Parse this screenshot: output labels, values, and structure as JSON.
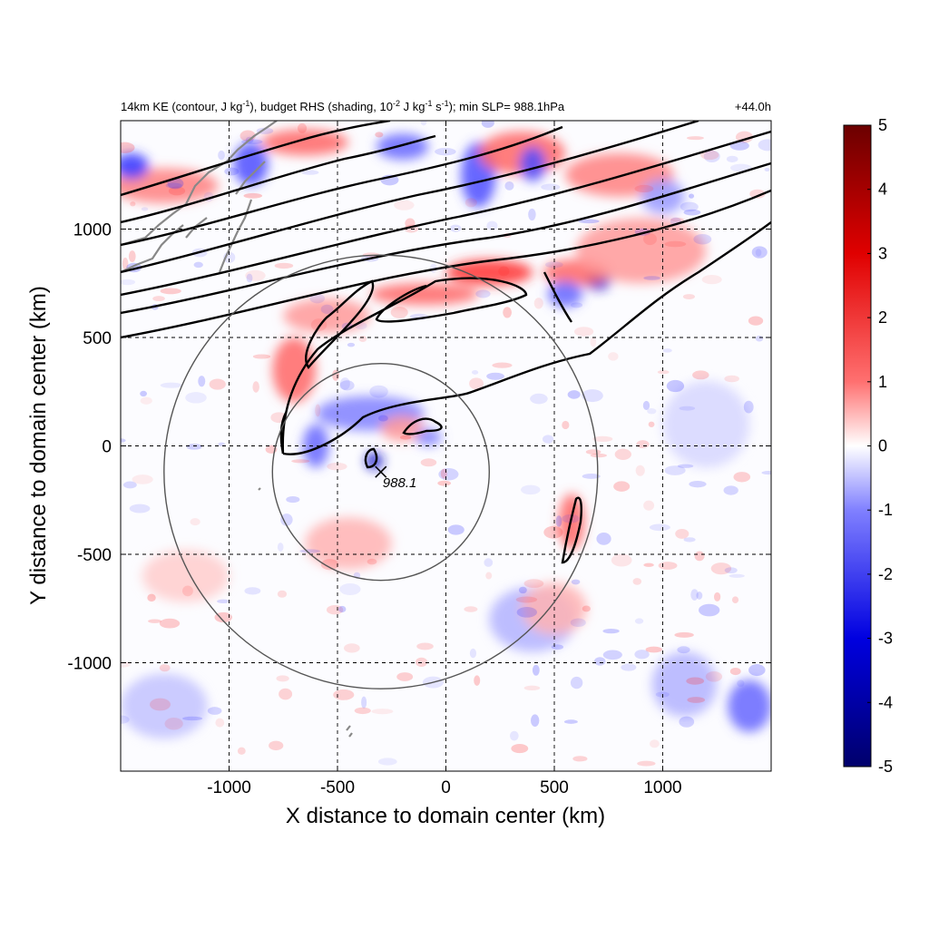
{
  "chart_data": {
    "type": "heatmap",
    "title_main": "14km KE (contour, J kg",
    "title_sup1": "-1",
    "title_mid": "), budget RHS (shading, 10",
    "title_sup2": "-2",
    "title_mid2": " J kg",
    "title_sup3": "-1",
    "title_mid3": " s",
    "title_sup4": "-1",
    "title_end": "); min SLP= 988.1hPa",
    "time_label": "+44.0h",
    "xlabel": "X distance to domain center (km)",
    "ylabel": "Y distance to domain center (km)",
    "xlim": [
      -1500,
      1500
    ],
    "ylim": [
      -1500,
      1500
    ],
    "x_ticks": [
      -1000,
      -500,
      0,
      500,
      1000
    ],
    "y_ticks": [
      -1000,
      -500,
      0,
      500,
      1000
    ],
    "x_tick_labels": [
      "-1000",
      "-500",
      "0",
      "500",
      "1000"
    ],
    "y_tick_labels": [
      "-1000",
      "-500",
      "0",
      "500",
      "1000"
    ],
    "grid": true,
    "colorbar": {
      "range": [
        -5,
        5
      ],
      "ticks": [
        5,
        4,
        3,
        2,
        1,
        0,
        -1,
        -2,
        -3,
        -4,
        -5
      ],
      "tick_labels": [
        "5",
        "4",
        "3",
        "2",
        "1",
        "0",
        "-1",
        "-2",
        "-3",
        "-4",
        "-5"
      ],
      "colors": {
        "max": "#6b0000",
        "pos": "#ff0000",
        "zero": "#ffffff",
        "neg": "#0000ff",
        "min": "#00006b"
      }
    },
    "storm_center": {
      "x": -300,
      "y": -120,
      "label": "988.1",
      "marker": "x-mark"
    },
    "radius_circles_km": [
      500,
      1000
    ],
    "shading_regions": [
      {
        "kind": "pos",
        "x": -1300,
        "y": 1200,
        "rx": 250,
        "ry": 80,
        "v": 2.5
      },
      {
        "kind": "neg",
        "x": -1450,
        "y": 1290,
        "rx": 80,
        "ry": 60,
        "v": -4
      },
      {
        "kind": "neg",
        "x": -900,
        "y": 1300,
        "rx": 80,
        "ry": 100,
        "v": -3.5
      },
      {
        "kind": "pos",
        "x": -650,
        "y": 1400,
        "rx": 200,
        "ry": 60,
        "v": 3
      },
      {
        "kind": "neg",
        "x": -200,
        "y": 1380,
        "rx": 120,
        "ry": 60,
        "v": -3
      },
      {
        "kind": "neg",
        "x": 150,
        "y": 1250,
        "rx": 80,
        "ry": 150,
        "v": -3.5
      },
      {
        "kind": "pos",
        "x": 350,
        "y": 1350,
        "rx": 200,
        "ry": 100,
        "v": 3
      },
      {
        "kind": "neg",
        "x": 400,
        "y": 1300,
        "rx": 60,
        "ry": 80,
        "v": -3.5
      },
      {
        "kind": "pos",
        "x": 800,
        "y": 1250,
        "rx": 250,
        "ry": 100,
        "v": 2.5
      },
      {
        "kind": "neg",
        "x": 1000,
        "y": 1150,
        "rx": 100,
        "ry": 80,
        "v": -2
      },
      {
        "kind": "pos",
        "x": 200,
        "y": 800,
        "rx": 200,
        "ry": 60,
        "v": 4
      },
      {
        "kind": "pos",
        "x": -100,
        "y": 700,
        "rx": 250,
        "ry": 50,
        "v": 3
      },
      {
        "kind": "neg",
        "x": 700,
        "y": 760,
        "rx": 60,
        "ry": 40,
        "v": -4.5
      },
      {
        "kind": "pos",
        "x": 600,
        "y": 800,
        "rx": 150,
        "ry": 60,
        "v": 3
      },
      {
        "kind": "neg",
        "x": 550,
        "y": 700,
        "rx": 80,
        "ry": 60,
        "v": -3
      },
      {
        "kind": "pos",
        "x": -700,
        "y": 350,
        "rx": 100,
        "ry": 150,
        "v": 3
      },
      {
        "kind": "pos",
        "x": -550,
        "y": 600,
        "rx": 200,
        "ry": 80,
        "v": 2
      },
      {
        "kind": "neg",
        "x": -350,
        "y": 150,
        "rx": 250,
        "ry": 80,
        "v": -2.5
      },
      {
        "kind": "neg",
        "x": -600,
        "y": 0,
        "rx": 60,
        "ry": 100,
        "v": -3
      },
      {
        "kind": "neg",
        "x": -330,
        "y": -70,
        "rx": 40,
        "ry": 40,
        "v": -4.5
      },
      {
        "kind": "pos",
        "x": -200,
        "y": 80,
        "rx": 100,
        "ry": 60,
        "v": 2
      },
      {
        "kind": "neg",
        "x": -80,
        "y": 40,
        "rx": 60,
        "ry": 40,
        "v": -2.5
      },
      {
        "kind": "pos",
        "x": 580,
        "y": -350,
        "rx": 60,
        "ry": 130,
        "v": 3
      },
      {
        "kind": "pos",
        "x": -450,
        "y": -450,
        "rx": 200,
        "ry": 120,
        "v": 1.5
      },
      {
        "kind": "neg",
        "x": 400,
        "y": -800,
        "rx": 200,
        "ry": 150,
        "v": -1.5
      },
      {
        "kind": "pos",
        "x": 500,
        "y": -750,
        "rx": 150,
        "ry": 120,
        "v": 1.5
      },
      {
        "kind": "neg",
        "x": 1400,
        "y": -1200,
        "rx": 100,
        "ry": 120,
        "v": -3
      },
      {
        "kind": "neg",
        "x": 1100,
        "y": -1100,
        "rx": 150,
        "ry": 150,
        "v": -1.5
      },
      {
        "kind": "pos",
        "x": -1200,
        "y": -600,
        "rx": 200,
        "ry": 120,
        "v": 1
      },
      {
        "kind": "neg",
        "x": -1300,
        "y": -1200,
        "rx": 200,
        "ry": 150,
        "v": -1.2
      },
      {
        "kind": "neg",
        "x": 1200,
        "y": 100,
        "rx": 200,
        "ry": 200,
        "v": -0.8
      },
      {
        "kind": "pos",
        "x": 900,
        "y": 900,
        "rx": 300,
        "ry": 150,
        "v": 2
      }
    ]
  }
}
